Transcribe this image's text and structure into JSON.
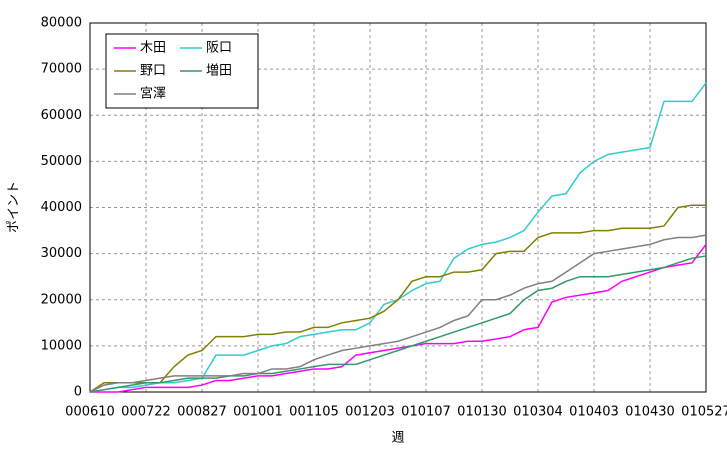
{
  "chart_data": {
    "type": "line",
    "x_label": "週",
    "y_label": "ポイント",
    "categories": [
      "000610",
      null,
      null,
      null,
      "000722",
      null,
      null,
      null,
      "000827",
      null,
      null,
      null,
      "001001",
      null,
      null,
      null,
      "001105",
      null,
      null,
      null,
      "001203",
      null,
      null,
      null,
      "010107",
      null,
      null,
      null,
      "010130",
      null,
      null,
      null,
      "010304",
      null,
      null,
      null,
      "010403",
      null,
      null,
      null,
      "010430",
      null,
      null,
      null,
      "010527"
    ],
    "series": [
      {
        "name": "木田",
        "color": "#ff00ff",
        "values": [
          0,
          0,
          0,
          500,
          1000,
          1000,
          1000,
          1000,
          1500,
          2500,
          2500,
          3000,
          3500,
          3500,
          4000,
          4500,
          5000,
          5000,
          5500,
          8000,
          8500,
          9000,
          9500,
          10000,
          10500,
          10500,
          10500,
          11000,
          11000,
          11500,
          12000,
          13500,
          14000,
          19500,
          20500,
          21000,
          21500,
          22000,
          24000,
          25000,
          26000,
          27000,
          27500,
          28000,
          32000
        ]
      },
      {
        "name": "阪口",
        "color": "#33cccc",
        "values": [
          0,
          500,
          1000,
          1000,
          1500,
          2000,
          2000,
          2500,
          3000,
          8000,
          8000,
          8000,
          9000,
          10000,
          10500,
          12000,
          12500,
          13000,
          13500,
          13500,
          15000,
          19000,
          20000,
          22000,
          23500,
          24000,
          29000,
          31000,
          32000,
          32500,
          33500,
          35000,
          39000,
          42500,
          43000,
          47500,
          50000,
          51500,
          52000,
          52500,
          53000,
          63000,
          63000,
          63000,
          67000
        ]
      },
      {
        "name": "野口",
        "color": "#808000",
        "values": [
          0,
          2000,
          2000,
          2000,
          2000,
          2000,
          5500,
          8000,
          9000,
          12000,
          12000,
          12000,
          12500,
          12500,
          13000,
          13000,
          14000,
          14000,
          15000,
          15500,
          16000,
          17500,
          20000,
          24000,
          25000,
          25000,
          26000,
          26000,
          26500,
          30000,
          30500,
          30500,
          33500,
          34500,
          34500,
          34500,
          35000,
          35000,
          35500,
          35500,
          35500,
          36000,
          40000,
          40500,
          40500
        ]
      },
      {
        "name": "増田",
        "color": "#339966",
        "values": [
          0,
          500,
          1000,
          1500,
          2000,
          2000,
          2500,
          3000,
          3000,
          3000,
          3500,
          3500,
          4000,
          4000,
          4500,
          5000,
          5500,
          6000,
          6000,
          6000,
          7000,
          8000,
          9000,
          10000,
          11000,
          12000,
          13000,
          14000,
          15000,
          16000,
          17000,
          20000,
          22000,
          22500,
          24000,
          25000,
          25000,
          25000,
          25500,
          26000,
          26500,
          27000,
          28000,
          29000,
          29500
        ]
      },
      {
        "name": "宮澤",
        "color": "#808080",
        "values": [
          0,
          1500,
          2000,
          2000,
          2500,
          3000,
          3500,
          3500,
          3500,
          3500,
          3500,
          4000,
          4000,
          5000,
          5000,
          5500,
          7000,
          8000,
          9000,
          9500,
          10000,
          10500,
          11000,
          12000,
          13000,
          14000,
          15500,
          16500,
          20000,
          20000,
          21000,
          22500,
          23500,
          24000,
          26000,
          28000,
          30000,
          30500,
          31000,
          31500,
          32000,
          33000,
          33500,
          33500,
          34000
        ]
      }
    ],
    "ylim": [
      0,
      80000
    ],
    "yticks": [
      0,
      10000,
      20000,
      30000,
      40000,
      50000,
      60000,
      70000,
      80000
    ],
    "grid": true,
    "legend": "upper-left"
  }
}
